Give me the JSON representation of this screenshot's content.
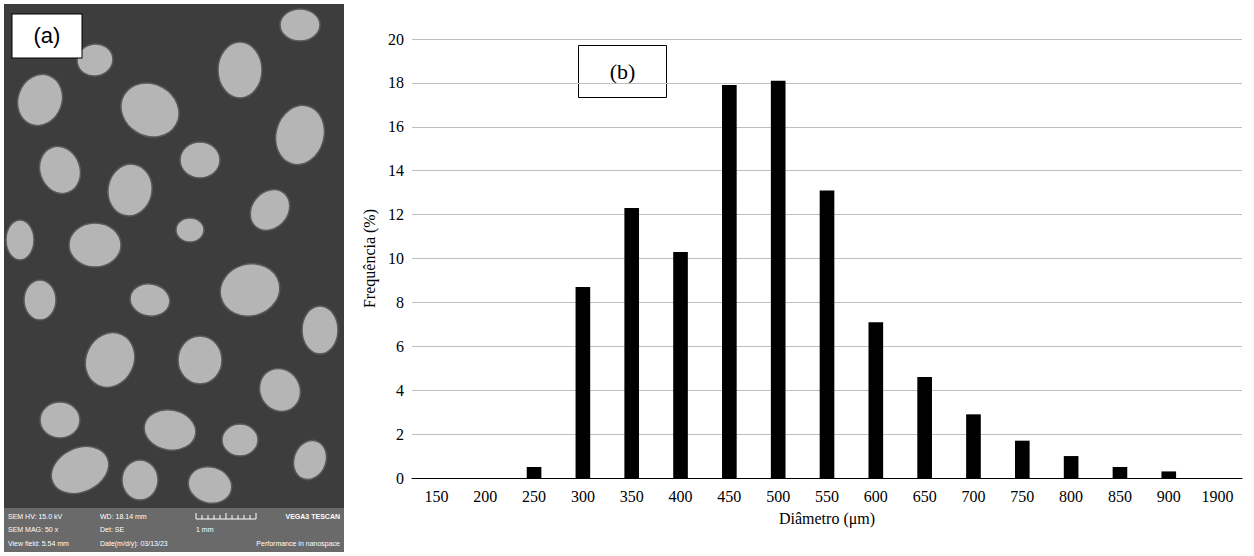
{
  "chart_data": {
    "type": "bar",
    "annotations": [
      "(b)"
    ],
    "x_label": "Diâmetro (μm)",
    "y_label": "Frequência (%)",
    "categories": [
      "150",
      "200",
      "250",
      "300",
      "350",
      "400",
      "450",
      "500",
      "550",
      "600",
      "650",
      "700",
      "750",
      "800",
      "850",
      "900",
      "1900"
    ],
    "values": [
      0,
      0,
      0.5,
      8.7,
      12.3,
      10.3,
      17.9,
      18.1,
      13.1,
      7.1,
      4.6,
      2.9,
      1.7,
      1.0,
      0.5,
      0.3,
      0
    ],
    "color": "#000000",
    "ylim": [
      0,
      20
    ],
    "yticks": [
      0,
      2,
      4,
      6,
      8,
      10,
      12,
      14,
      16,
      18,
      20
    ],
    "grid": true
  },
  "sem_image": {
    "label": "(a)",
    "info_bar": {
      "rows": [
        [
          "SEM HV: 15.0 kV",
          "WD: 18.14 mm"
        ],
        [
          "SEM MAG: 50 x",
          "Det: SE"
        ],
        [
          "View field: 5.54 mm",
          "Date(m/d/y): 03/13/23"
        ]
      ],
      "scale_label": "1 mm",
      "brand": "VEGA3 TESCAN",
      "slogan": "Performance in nanospace"
    }
  }
}
